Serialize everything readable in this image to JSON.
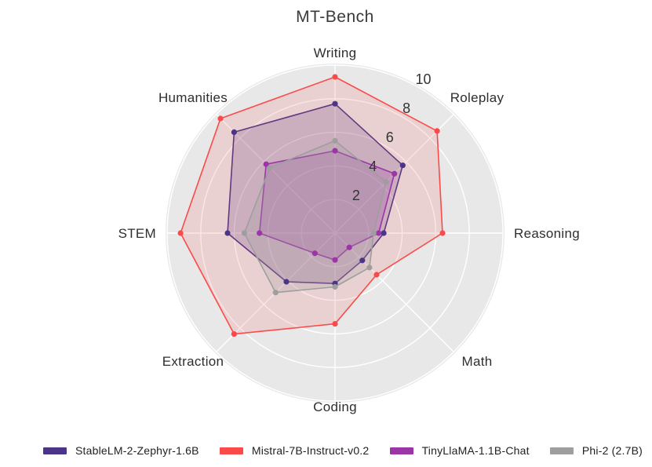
{
  "chart_data": {
    "type": "radar",
    "title": "MT-Bench",
    "categories": [
      "Writing",
      "Roleplay",
      "Reasoning",
      "Math",
      "Coding",
      "Extraction",
      "STEM",
      "Humanities"
    ],
    "radial_axis": {
      "min": 0,
      "max": 10,
      "ticks": [
        2,
        4,
        6,
        8,
        10
      ]
    },
    "grid": true,
    "legend_position": "bottom",
    "background_circle_color": "#e8e8e8",
    "gridline_color": "#ffffff",
    "series": [
      {
        "name": "StableLM-2-Zephyr-1.6B",
        "color": "#4b3589",
        "fill_opacity": 0.22,
        "values": [
          7.7,
          5.7,
          2.9,
          2.3,
          3.0,
          4.1,
          6.4,
          8.5
        ]
      },
      {
        "name": "Mistral-7B-Instruct-v0.2",
        "color": "#fb4a4a",
        "fill_opacity": 0.14,
        "values": [
          9.3,
          8.6,
          6.4,
          3.5,
          5.4,
          8.5,
          9.2,
          9.65
        ]
      },
      {
        "name": "TinyLlaMA-1.1B-Chat",
        "color": "#9c36a6",
        "fill_opacity": 0.22,
        "values": [
          4.9,
          5.0,
          2.6,
          1.2,
          1.6,
          1.7,
          4.5,
          5.8
        ]
      },
      {
        "name": "Phi-2 (2.7B)",
        "color": "#9e9e9e",
        "fill_opacity": 0.26,
        "values": [
          5.5,
          4.3,
          2.3,
          2.9,
          3.2,
          5.0,
          5.4,
          5.5
        ]
      }
    ]
  }
}
